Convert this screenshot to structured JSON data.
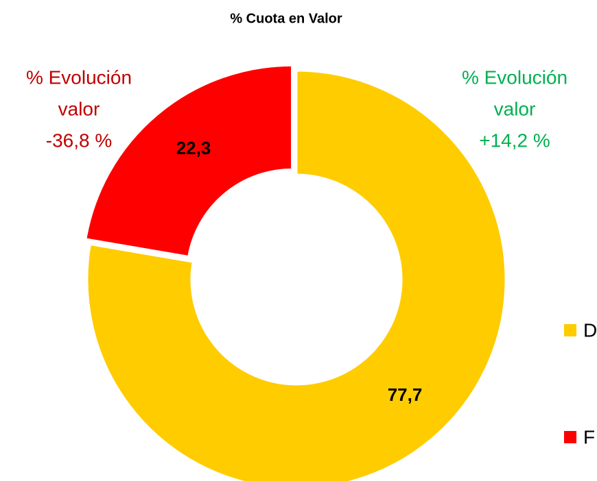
{
  "chart_data": {
    "type": "donut",
    "title": "% Cuota en Valor",
    "series": [
      {
        "name": "D",
        "color": "#ffcc00",
        "values": [
          77.7
        ],
        "value_labels": [
          "77,7"
        ]
      },
      {
        "name": "F",
        "color": "#ff0000",
        "values": [
          22.3
        ],
        "value_labels": [
          "22,3"
        ]
      }
    ],
    "annotations": [
      {
        "lines": [
          "% Evolución",
          "valor",
          "-36,8 %"
        ],
        "color": "#c00000"
      },
      {
        "lines": [
          "% Evolución",
          "valor",
          "+14,2 %"
        ],
        "color": "#00b050"
      }
    ]
  }
}
